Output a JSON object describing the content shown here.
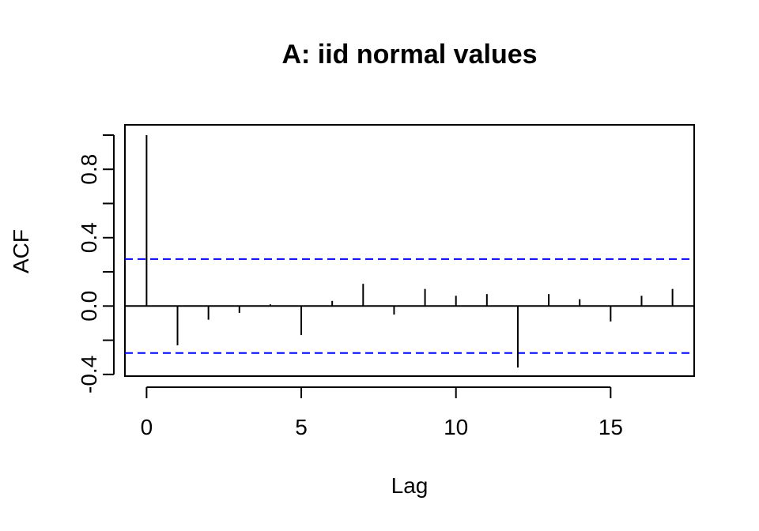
{
  "chart_data": {
    "type": "bar",
    "title": "A: iid normal values",
    "xlabel": "Lag",
    "ylabel": "ACF",
    "xlim": [
      -0.7,
      17.7
    ],
    "ylim": [
      -0.41,
      1.06
    ],
    "x_ticks": [
      0,
      5,
      10,
      15
    ],
    "y_ticks": [
      -0.4,
      -0.2,
      0.0,
      0.2,
      0.4,
      0.6,
      0.8,
      1.0
    ],
    "y_tick_labels": [
      {
        "value": -0.4,
        "label": "-0.4"
      },
      {
        "value": 0.0,
        "label": "0.0"
      },
      {
        "value": 0.4,
        "label": "0.4"
      },
      {
        "value": 0.8,
        "label": "0.8"
      }
    ],
    "lags": [
      0,
      1,
      2,
      3,
      4,
      5,
      6,
      7,
      8,
      9,
      10,
      11,
      12,
      13,
      14,
      15,
      16,
      17
    ],
    "acf": [
      1.0,
      -0.23,
      -0.08,
      -0.04,
      0.01,
      -0.17,
      0.03,
      0.13,
      -0.05,
      0.1,
      0.06,
      0.07,
      -0.36,
      0.07,
      0.04,
      -0.09,
      0.06,
      0.1
    ],
    "confidence_band": [
      0.275,
      -0.275
    ],
    "colors": {
      "bars": "#000000",
      "band": "#0000ff",
      "frame": "#000000"
    }
  }
}
